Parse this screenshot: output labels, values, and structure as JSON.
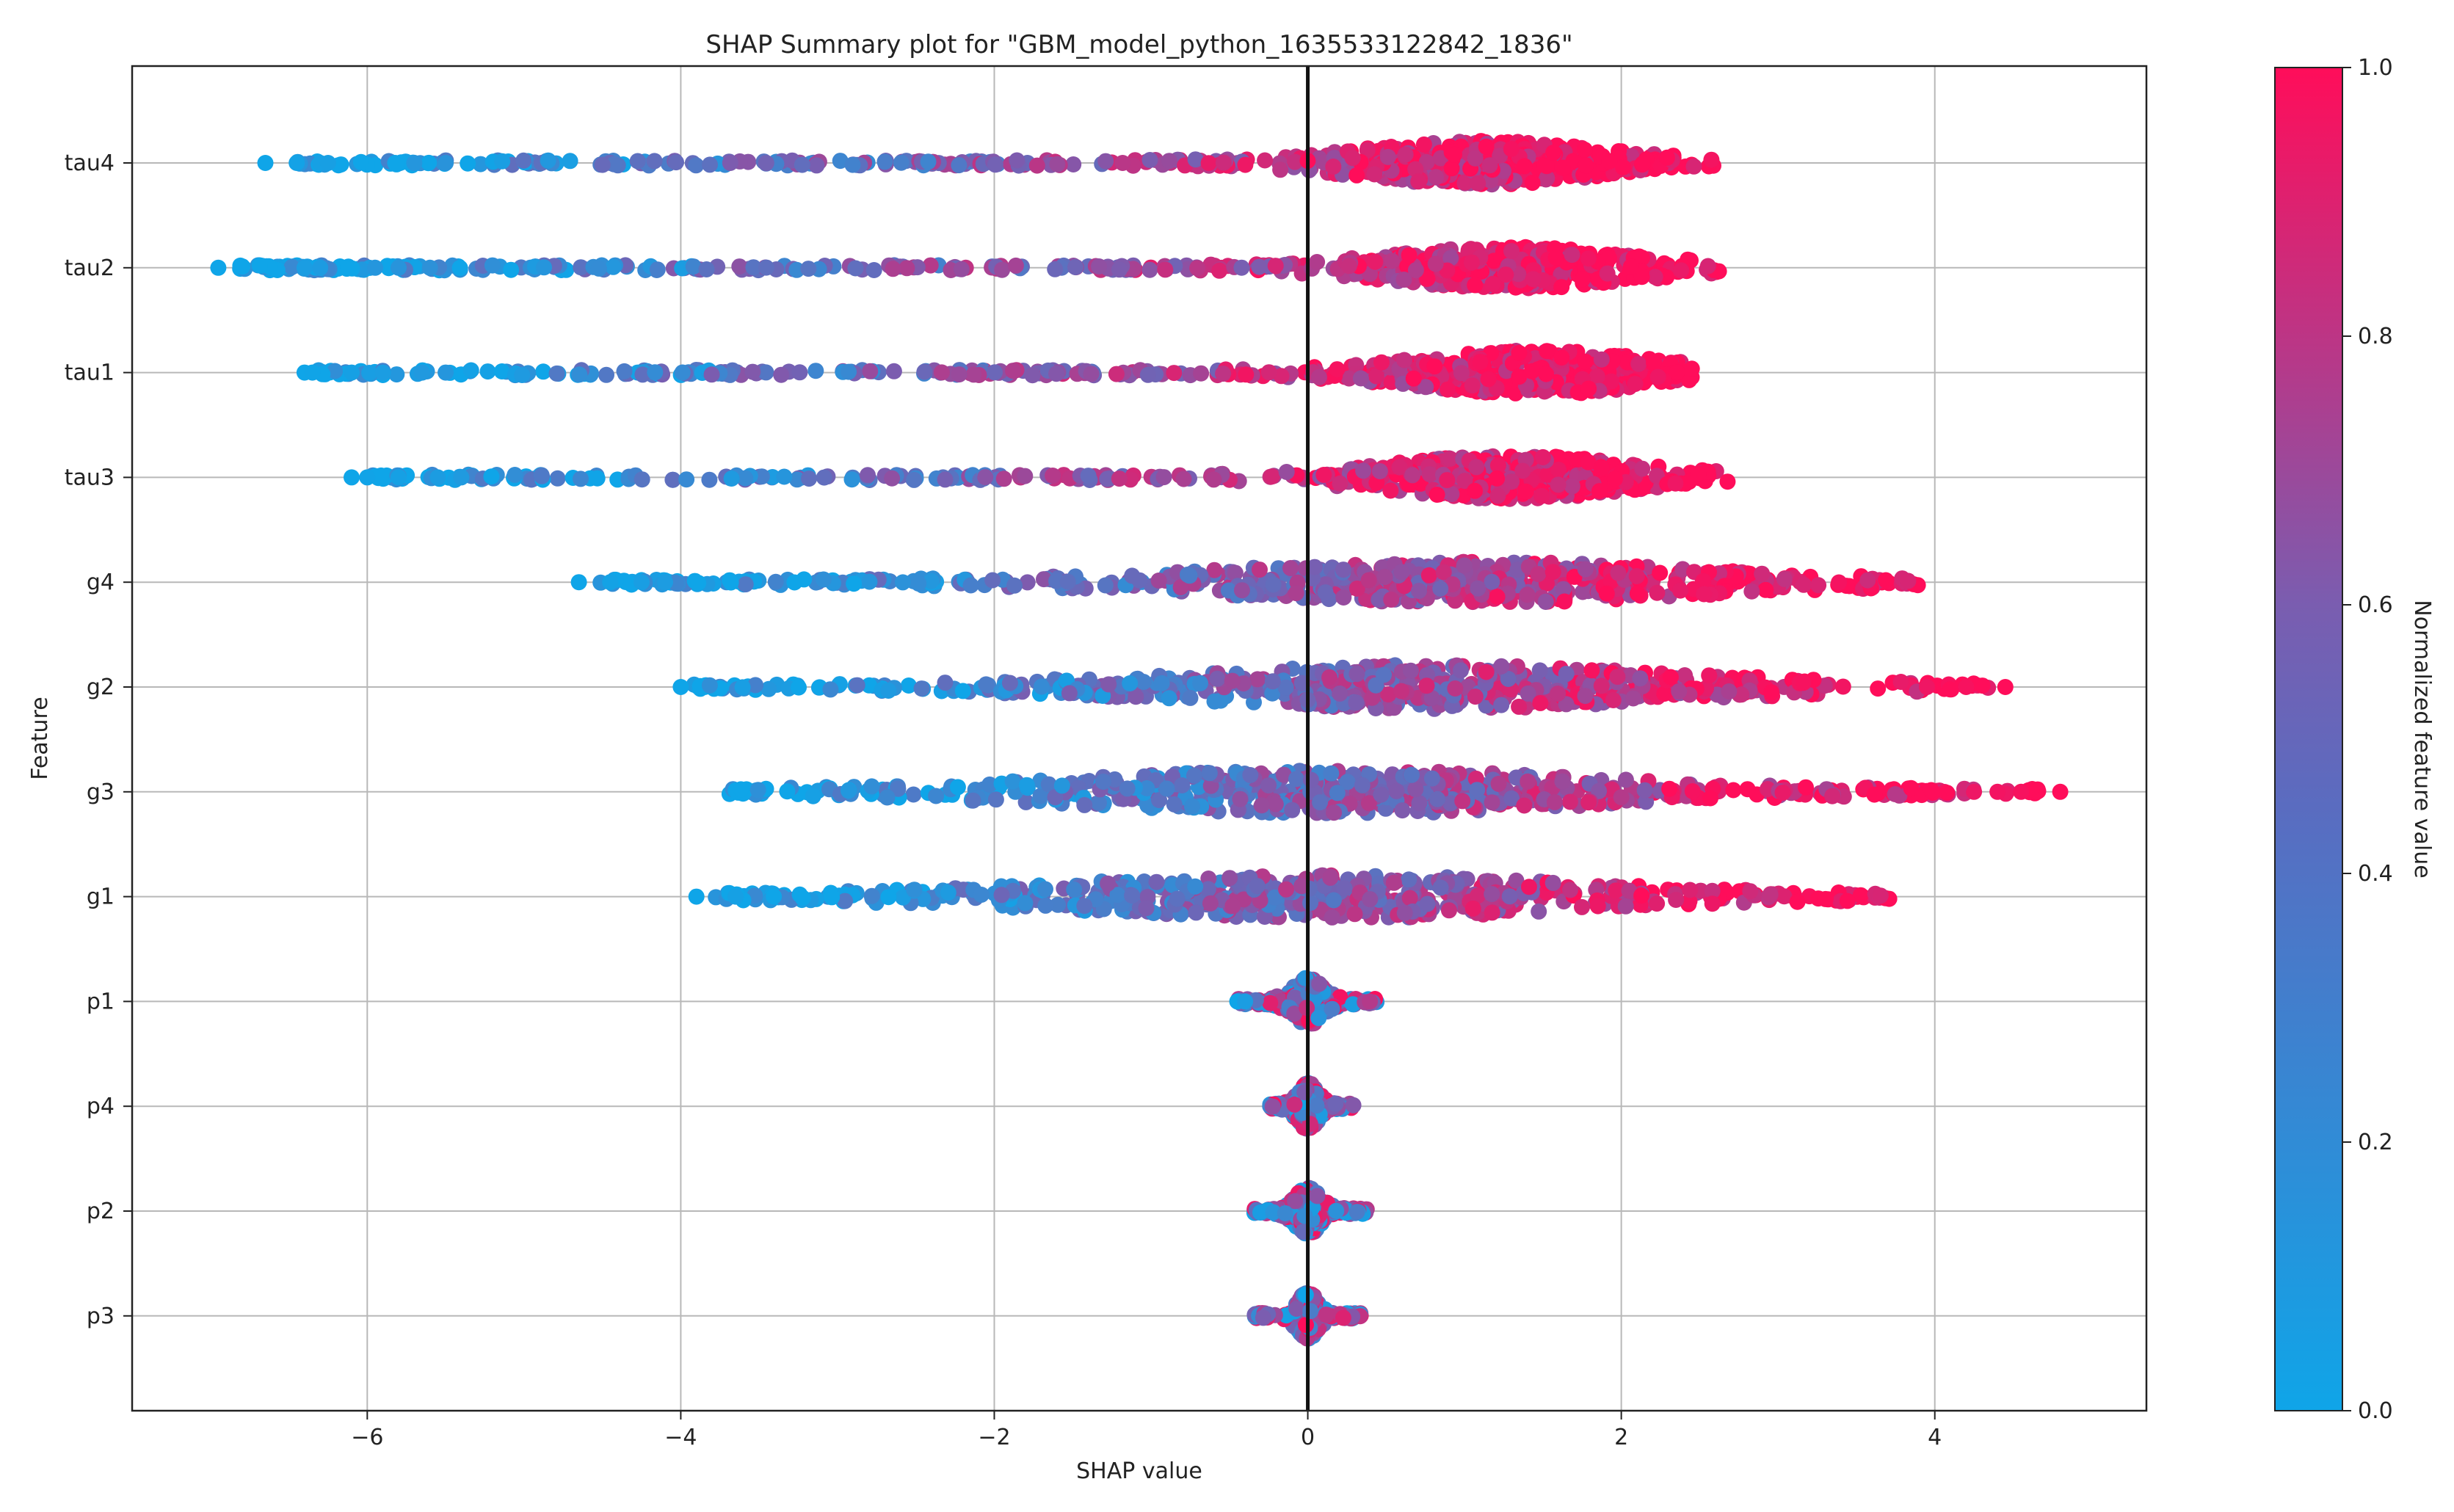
{
  "chart_data": {
    "type": "scatter",
    "subtype": "shap-beeswarm",
    "title": "SHAP Summary plot for \"GBM_model_python_1635533122842_1836\"",
    "xlabel": "SHAP value",
    "ylabel": "Feature",
    "xlim": [
      -7.5,
      5.35
    ],
    "x_ticks": [
      -6,
      -4,
      -2,
      0,
      2,
      4
    ],
    "x_tick_labels": [
      "−6",
      "−4",
      "−2",
      "0",
      "2",
      "4"
    ],
    "grid": true,
    "zero_line": 0,
    "colorbar": {
      "label": "Normalized feature value",
      "range": [
        0.0,
        1.0
      ],
      "ticks": [
        0.0,
        0.2,
        0.4,
        0.6,
        0.8,
        1.0
      ],
      "tick_labels": [
        "0.0",
        "0.2",
        "0.4",
        "0.6",
        "0.8",
        "1.0"
      ],
      "color_low": "#0fa5e8",
      "color_mid": "#7a5db0",
      "color_high": "#ff0d5a"
    },
    "features": [
      {
        "name": "tau4",
        "min": -6.65,
        "max": 2.7,
        "peak": 1.1,
        "spread": 0.95,
        "width": 0.42,
        "tail_gaps": [
          -6.65,
          -6.45,
          -6.3,
          -6.25,
          -5.7,
          -5.5
        ]
      },
      {
        "name": "tau2",
        "min": -6.95,
        "max": 2.8,
        "peak": 1.3,
        "spread": 0.95,
        "width": 0.4,
        "tail_gaps": [
          -6.95,
          -6.4,
          -6.3,
          -5.95,
          -5.8,
          -5.6
        ]
      },
      {
        "name": "tau1",
        "min": -6.4,
        "max": 2.45,
        "peak": 1.45,
        "spread": 0.95,
        "width": 0.42,
        "tail_gaps": [
          -6.4,
          -6.35,
          -6.1,
          -5.9,
          -5.65,
          -5.5
        ]
      },
      {
        "name": "tau3",
        "min": -6.1,
        "max": 2.7,
        "peak": 1.3,
        "spread": 0.95,
        "width": 0.42,
        "tail_gaps": [
          -6.1,
          -6.0,
          -5.8,
          -5.55,
          -5.4
        ]
      },
      {
        "name": "g4",
        "min": -4.65,
        "max": 4.05,
        "peak": 1.0,
        "spread": 1.9,
        "width": 0.4,
        "tail_gaps": [
          -4.65,
          -4.45,
          -4.25,
          -4.1
        ]
      },
      {
        "name": "g2",
        "min": -4.0,
        "max": 4.45,
        "peak": 0.8,
        "spread": 1.9,
        "width": 0.42,
        "tail_gaps": [
          -4.0,
          3.95,
          4.2,
          4.45
        ]
      },
      {
        "name": "g3",
        "min": -3.8,
        "max": 4.8,
        "peak": 0.2,
        "spread": 2.0,
        "width": 0.42,
        "tail_gaps": [
          4.25,
          4.4,
          4.55,
          4.8
        ]
      },
      {
        "name": "g1",
        "min": -3.9,
        "max": 3.85,
        "peak": 0.1,
        "spread": 2.0,
        "width": 0.42,
        "tail_gaps": [
          -3.9,
          -3.65
        ]
      },
      {
        "name": "p1",
        "min": -0.45,
        "max": 0.45,
        "peak": 0.0,
        "spread": 0.12,
        "width": 0.45,
        "tail_gaps": [
          -0.45,
          -0.4
        ]
      },
      {
        "name": "p4",
        "min": -0.25,
        "max": 0.3,
        "peak": 0.0,
        "spread": 0.08,
        "width": 0.45,
        "tail_gaps": []
      },
      {
        "name": "p2",
        "min": -0.35,
        "max": 0.4,
        "peak": 0.0,
        "spread": 0.1,
        "width": 0.45,
        "tail_gaps": []
      },
      {
        "name": "p3",
        "min": -0.35,
        "max": 0.35,
        "peak": 0.0,
        "spread": 0.08,
        "width": 0.45,
        "tail_gaps": []
      }
    ]
  }
}
